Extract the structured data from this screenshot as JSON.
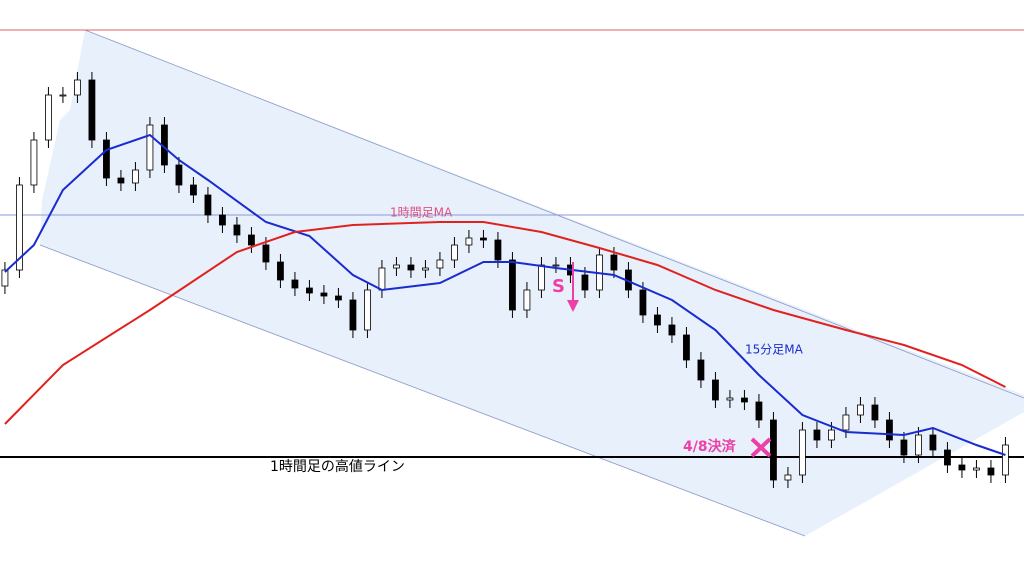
{
  "chart_data": {
    "type": "candlestick",
    "open": [
      290,
      306,
      391,
      436,
      481,
      481,
      496,
      436,
      398,
      393,
      406,
      451,
      411,
      391,
      381,
      361,
      351,
      341,
      331,
      314,
      296,
      288,
      283,
      280,
      276,
      246,
      286,
      308,
      311,
      306,
      308,
      316,
      331,
      338,
      336,
      316,
      266,
      286,
      311,
      311,
      301,
      286,
      321,
      306,
      286,
      261,
      251,
      241,
      216,
      196,
      176,
      178,
      174,
      156,
      96,
      101,
      146,
      136,
      146,
      161,
      171,
      156,
      136,
      121,
      141,
      126,
      111,
      106,
      108,
      101
    ],
    "high": [
      314,
      399,
      444,
      489,
      489,
      504,
      504,
      444,
      406,
      414,
      459,
      459,
      419,
      399,
      389,
      369,
      359,
      349,
      339,
      322,
      304,
      296,
      291,
      288,
      284,
      294,
      316,
      319,
      319,
      316,
      324,
      339,
      346,
      346,
      344,
      324,
      294,
      319,
      319,
      319,
      309,
      329,
      329,
      314,
      294,
      269,
      259,
      249,
      224,
      204,
      186,
      186,
      182,
      164,
      109,
      154,
      154,
      154,
      169,
      179,
      179,
      164,
      144,
      149,
      149,
      134,
      119,
      116,
      116,
      139
    ],
    "low": [
      282,
      298,
      383,
      428,
      473,
      473,
      428,
      390,
      385,
      385,
      398,
      403,
      383,
      373,
      353,
      343,
      333,
      323,
      306,
      288,
      280,
      275,
      272,
      268,
      238,
      238,
      278,
      300,
      298,
      298,
      300,
      308,
      323,
      328,
      308,
      258,
      258,
      278,
      303,
      293,
      278,
      278,
      298,
      278,
      253,
      243,
      233,
      208,
      188,
      168,
      168,
      166,
      148,
      88,
      88,
      93,
      128,
      128,
      138,
      153,
      148,
      128,
      113,
      113,
      118,
      103,
      98,
      98,
      93,
      93
    ],
    "close": [
      306,
      391,
      436,
      481,
      481,
      496,
      436,
      398,
      393,
      406,
      451,
      411,
      391,
      381,
      361,
      351,
      341,
      331,
      314,
      296,
      288,
      283,
      280,
      276,
      246,
      286,
      308,
      311,
      306,
      308,
      316,
      331,
      338,
      336,
      316,
      266,
      286,
      311,
      311,
      301,
      286,
      321,
      306,
      286,
      261,
      251,
      241,
      216,
      196,
      176,
      178,
      174,
      156,
      96,
      101,
      146,
      136,
      146,
      161,
      171,
      156,
      136,
      121,
      141,
      126,
      111,
      106,
      108,
      101,
      131
    ],
    "up_color": "#ffffff",
    "down_color": "#000000",
    "xlim": [
      -0.34,
      70.28
    ],
    "ylim": [
      0,
      576
    ],
    "series": [
      {
        "name": "15分足MA",
        "color": "#1a2bd0",
        "x": [
          0,
          2,
          4,
          7,
          10,
          12,
          14,
          18,
          21,
          24,
          26,
          30,
          33,
          35,
          38,
          42,
          46,
          49,
          52,
          55,
          58,
          62,
          64,
          67,
          69
        ],
        "values": [
          304,
          331,
          386,
          426,
          441,
          416,
          396,
          354,
          340,
          301,
          286,
          293,
          314,
          314,
          308,
          301,
          276,
          246,
          201,
          161,
          144,
          141,
          148,
          131,
          121
        ]
      },
      {
        "name": "1時間足MA",
        "color": "#e0221e",
        "x": [
          0,
          4,
          10,
          16,
          20,
          24,
          30,
          33,
          37,
          41,
          45,
          49,
          53,
          58,
          62,
          66,
          69
        ],
        "values": [
          152,
          211,
          266,
          324,
          344,
          351,
          354,
          354,
          344,
          328,
          311,
          286,
          266,
          246,
          231,
          211,
          189
        ]
      }
    ],
    "hlines": [
      {
        "value": 546,
        "color": "#e06060"
      },
      {
        "value": 361,
        "color": "#8a9ad8"
      },
      {
        "value": 119,
        "color": "#000000"
      }
    ],
    "annotations": [
      {
        "text": "1時間足の高値ライン",
        "color": "#000000"
      },
      {
        "text": "S",
        "color": "#ee3fa8"
      },
      {
        "text": "4/8決済",
        "color": "#ee3fa8"
      }
    ]
  }
}
